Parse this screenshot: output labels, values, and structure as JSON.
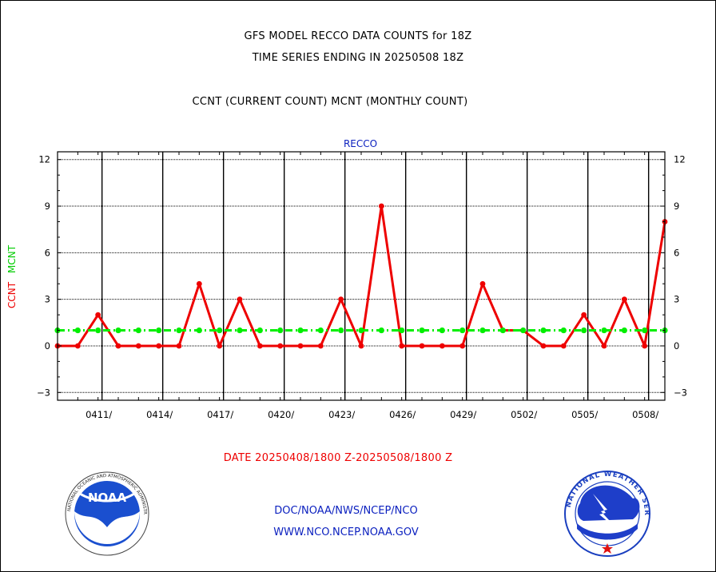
{
  "titles": {
    "line1": "GFS MODEL RECCO DATA COUNTS for 18Z",
    "line2": "TIME SERIES ENDING IN 20250508 18Z",
    "line3": "CCNT (CURRENT COUNT) MCNT (MONTHLY COUNT)"
  },
  "footer": {
    "date_range": "DATE 20250408/1800 Z-20250508/1800 Z",
    "link1": "DOC/NOAA/NWS/NCEP/NCO",
    "link2": "WWW.NCO.NCEP.NOAA.GOV"
  },
  "logos": {
    "noaa": "NOAA",
    "noaa_ring": "NATIONAL OCEANIC AND ATMOSPHERIC ADMINISTRATION · U.S. DEPARTMENT OF COMMERCE",
    "nws_ring": "NATIONAL WEATHER SERVICE"
  },
  "chart_data": {
    "type": "line",
    "title": "RECCO",
    "ylabel_left": "CCNT",
    "ylabel_right": "MCNT",
    "ylim": [
      -3.5,
      12.5
    ],
    "yticks": [
      -3,
      0,
      3,
      6,
      9,
      12
    ],
    "xlim": [
      0,
      30
    ],
    "xticks": [
      {
        "x": 2,
        "label": "0411/"
      },
      {
        "x": 5,
        "label": "0414/"
      },
      {
        "x": 8,
        "label": "0417/"
      },
      {
        "x": 11,
        "label": "0420/"
      },
      {
        "x": 14,
        "label": "0423/"
      },
      {
        "x": 17,
        "label": "0426/"
      },
      {
        "x": 20,
        "label": "0429/"
      },
      {
        "x": 23,
        "label": "0502/"
      },
      {
        "x": 26,
        "label": "0505/"
      },
      {
        "x": 29,
        "label": "0508/"
      }
    ],
    "series": [
      {
        "name": "CCNT",
        "color": "#ee0000",
        "x": [
          0,
          1,
          2,
          3,
          4,
          5,
          6,
          7,
          8,
          9,
          10,
          11,
          12,
          13,
          14,
          15,
          16,
          17,
          18,
          19,
          20,
          21,
          22,
          23,
          24,
          25,
          26,
          27,
          28,
          29,
          30
        ],
        "values": [
          0,
          0,
          2,
          0,
          0,
          0,
          0,
          4,
          0,
          3,
          0,
          0,
          0,
          0,
          3,
          0,
          9,
          0,
          0,
          0,
          0,
          4,
          1,
          1,
          0,
          0,
          2,
          0,
          3,
          0,
          8
        ]
      },
      {
        "name": "MCNT",
        "color": "#00ee00",
        "x": [
          0,
          1,
          2,
          3,
          4,
          5,
          6,
          7,
          8,
          9,
          10,
          11,
          12,
          13,
          14,
          15,
          16,
          17,
          18,
          19,
          20,
          21,
          22,
          23,
          24,
          25,
          26,
          27,
          28,
          29,
          30
        ],
        "values": [
          1,
          1,
          1,
          1,
          1,
          1,
          1,
          1,
          1,
          1,
          1,
          1,
          1,
          1,
          1,
          1,
          1,
          1,
          1,
          1,
          1,
          1,
          1,
          1,
          1,
          1,
          1,
          1,
          1,
          1,
          1
        ]
      }
    ],
    "grid": true
  }
}
